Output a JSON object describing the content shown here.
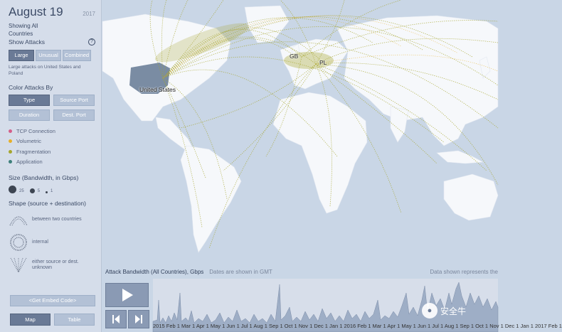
{
  "sidebar": {
    "date": "August 19",
    "year": "2017",
    "showing_line1": "Showing All",
    "showing_line2": "Countries",
    "show_attacks_label": "Show Attacks",
    "help_label": "?",
    "attack_filters": [
      {
        "label": "Large",
        "active": true
      },
      {
        "label": "Unusual",
        "active": false
      },
      {
        "label": "Combined",
        "active": false
      }
    ],
    "note": "Large attacks on United States and Poland",
    "color_by_label": "Color Attacks By",
    "color_by_buttons": [
      {
        "label": "Type",
        "active": true
      },
      {
        "label": "Source Port",
        "active": false
      },
      {
        "label": "Duration",
        "active": false
      },
      {
        "label": "Dest. Port",
        "active": false
      }
    ],
    "legend": [
      {
        "label": "TCP Connection",
        "color": "#d4608a"
      },
      {
        "label": "Volumetric",
        "color": "#e6b02a"
      },
      {
        "label": "Fragmentation",
        "color": "#a6a52e"
      },
      {
        "label": "Application",
        "color": "#3d7f7a"
      }
    ],
    "size_label": "Size (Bandwidth, in Gbps)",
    "size_values": [
      "25",
      "5",
      "1"
    ],
    "shape_label": "Shape (source + destination)",
    "shapes": [
      {
        "icon": "arc-icon",
        "label": "between two countries"
      },
      {
        "icon": "circle-dotted-icon",
        "label": "internal"
      },
      {
        "icon": "funnel-icon",
        "label": "either source or dest. unknown"
      }
    ],
    "embed_label": "<Get Embed Code>",
    "view_buttons": [
      {
        "label": "Map",
        "active": true
      },
      {
        "label": "Table",
        "active": false
      }
    ]
  },
  "map": {
    "labels": {
      "united_states": "United States",
      "gb": "GB",
      "pl": "PL"
    },
    "arc_colors": {
      "fragmentation": "#a6a52e",
      "volumetric": "#e6b02a"
    }
  },
  "timeline": {
    "title": "Attack Bandwidth (All Countries), Gbps",
    "gmt_note": "Dates are shown in GMT",
    "right_note": "Data shown represents the",
    "months": "2015 Feb 1 Mar 1 Apr 1 May 1 Jun 1 Jul 1 Aug 1 Sep 1 Oct 1 Nov 1 Dec 1 Jan 1 2016 Feb 1 Mar 1 Apr 1 May 1 Jun 1 Jul 1 Aug 1 Sep 1 Oct 1 Nov 1 Dec 1 Jan 1 2017 Feb 1",
    "play_icon": "play-icon",
    "prev_icon": "step-back-icon",
    "next_icon": "step-forward-icon"
  },
  "watermark": {
    "text": "安全牛",
    "icon": "wechat-icon"
  }
}
